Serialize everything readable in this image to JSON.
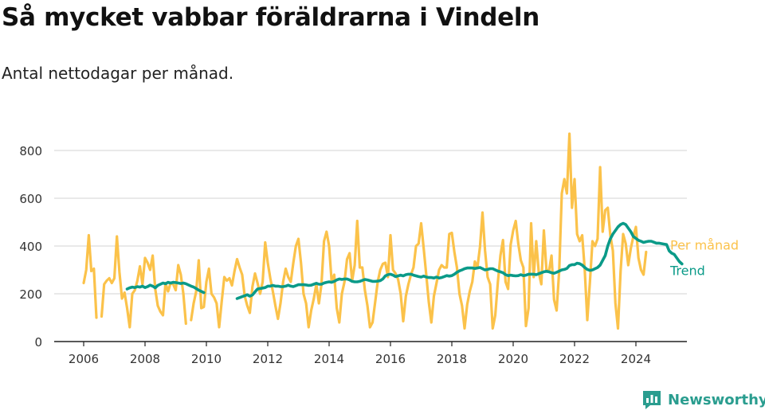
{
  "title": "Så mycket vabbar föräldrarna i Vindeln",
  "subtitle": "Antal nettodagar per månad.",
  "brand": "Newsworthy",
  "colors": {
    "monthly": "#fbc24a",
    "trend": "#0a9a88",
    "grid": "#dcdcdc",
    "axis": "#222222",
    "brand": "#2a9d8f"
  },
  "chart_data": {
    "type": "line",
    "xlabel": "",
    "ylabel": "",
    "x_range": [
      "2006-01",
      "2024-05"
    ],
    "ylim": [
      0,
      800
    ],
    "y_ticks": [
      0,
      200,
      400,
      600,
      800
    ],
    "x_ticks": [
      "2006",
      "2008",
      "2010",
      "2012",
      "2014",
      "2016",
      "2018",
      "2020",
      "2022",
      "2024"
    ],
    "grid": "horizontal",
    "legend": "right, inline labels at line ends",
    "series": [
      {
        "name": "Per månad",
        "start": "2006-01",
        "values": [
          245,
          300,
          445,
          295,
          305,
          100,
          null,
          105,
          240,
          255,
          265,
          245,
          265,
          440,
          290,
          180,
          205,
          140,
          60,
          200,
          215,
          255,
          315,
          240,
          350,
          330,
          300,
          360,
          220,
          150,
          125,
          110,
          245,
          210,
          245,
          240,
          215,
          320,
          280,
          200,
          75,
          null,
          90,
          160,
          210,
          340,
          140,
          145,
          250,
          305,
          200,
          185,
          160,
          60,
          170,
          270,
          255,
          265,
          235,
          295,
          345,
          310,
          280,
          190,
          150,
          120,
          230,
          285,
          245,
          200,
          250,
          415,
          330,
          265,
          210,
          150,
          95,
          160,
          250,
          305,
          270,
          250,
          330,
          400,
          430,
          330,
          200,
          160,
          60,
          130,
          180,
          240,
          160,
          240,
          420,
          460,
          400,
          250,
          280,
          140,
          80,
          200,
          250,
          345,
          370,
          255,
          320,
          505,
          310,
          310,
          215,
          150,
          60,
          80,
          165,
          250,
          300,
          325,
          330,
          270,
          445,
          300,
          285,
          260,
          200,
          85,
          190,
          240,
          280,
          310,
          400,
          410,
          495,
          390,
          280,
          165,
          80,
          190,
          245,
          300,
          320,
          310,
          310,
          450,
          455,
          375,
          310,
          200,
          150,
          55,
          155,
          210,
          250,
          335,
          310,
          395,
          540,
          380,
          270,
          240,
          55,
          110,
          250,
          360,
          425,
          250,
          220,
          405,
          465,
          505,
          410,
          340,
          310,
          65,
          140,
          495,
          270,
          420,
          290,
          240,
          465,
          300,
          295,
          360,
          175,
          130,
          300,
          620,
          680,
          620,
          870,
          560,
          680,
          450,
          420,
          445,
          300,
          90,
          250,
          420,
          400,
          430,
          730,
          460,
          550,
          560,
          445,
          380,
          160,
          55,
          295,
          450,
          410,
          320,
          390,
          440,
          480,
          350,
          300,
          280,
          375
        ]
      },
      {
        "name": "Trend",
        "start": "2007-06",
        "values": [
          220,
          225,
          228,
          226,
          230,
          228,
          232,
          226,
          230,
          236,
          232,
          225,
          235,
          240,
          245,
          242,
          248,
          245,
          248,
          247,
          245,
          243,
          245,
          242,
          237,
          232,
          228,
          222,
          215,
          210,
          205,
          null,
          null,
          null,
          null,
          null,
          null,
          null,
          null,
          null,
          null,
          null,
          null,
          180,
          184,
          188,
          192,
          196,
          190,
          195,
          208,
          220,
          222,
          224,
          226,
          232,
          232,
          235,
          232,
          232,
          230,
          230,
          232,
          236,
          232,
          230,
          234,
          238,
          238,
          238,
          237,
          235,
          236,
          240,
          244,
          240,
          240,
          245,
          248,
          250,
          248,
          252,
          258,
          262,
          260,
          262,
          262,
          258,
          252,
          250,
          250,
          252,
          256,
          260,
          258,
          255,
          252,
          252,
          253,
          255,
          262,
          275,
          280,
          282,
          278,
          272,
          275,
          278,
          275,
          280,
          282,
          282,
          278,
          275,
          272,
          270,
          274,
          270,
          268,
          268,
          266,
          270,
          266,
          268,
          272,
          276,
          274,
          276,
          282,
          290,
          296,
          300,
          305,
          308,
          308,
          308,
          306,
          308,
          310,
          305,
          300,
          302,
          305,
          305,
          300,
          295,
          292,
          288,
          280,
          276,
          278,
          276,
          275,
          276,
          280,
          276,
          278,
          282,
          282,
          282,
          280,
          284,
          288,
          292,
          294,
          292,
          288,
          286,
          290,
          295,
          300,
          302,
          306,
          318,
          322,
          322,
          328,
          326,
          320,
          310,
          302,
          298,
          300,
          305,
          310,
          320,
          340,
          360,
          400,
          430,
          450,
          465,
          480,
          490,
          495,
          490,
          475,
          460,
          440,
          432,
          424,
          420,
          415,
          418,
          420,
          420,
          416,
          412,
          412,
          410,
          408,
          406,
          380,
          370,
          365,
          350,
          335,
          325
        ]
      }
    ]
  }
}
